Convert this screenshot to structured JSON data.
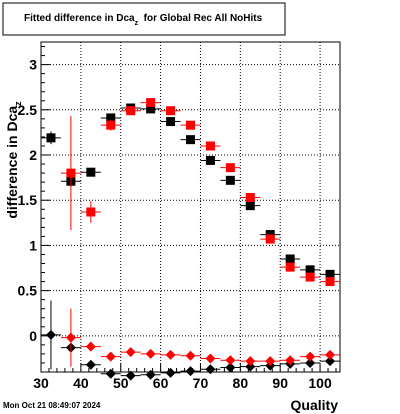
{
  "chart_data": {
    "type": "scatter",
    "title": "Fitted difference in Dca",
    "title_sub": "z",
    "title_rest": "  for Global Rec All NoHits",
    "xlabel": "Quality",
    "ylabel": "difference in Dca",
    "ylabel_sub": "z",
    "xlim": [
      30,
      105
    ],
    "ylim": [
      -0.4,
      3.25
    ],
    "x_ticks": [
      30,
      40,
      50,
      60,
      70,
      80,
      90,
      100
    ],
    "y_ticks": [
      0,
      0.5,
      1,
      1.5,
      2,
      2.5,
      3
    ],
    "x_tick_labels": [
      "30",
      "40",
      "50",
      "60",
      "70",
      "80",
      "90",
      "100"
    ],
    "y_tick_labels": [
      "0",
      "0.5",
      "1",
      "1.5",
      "2",
      "2.5",
      "3"
    ],
    "grid": true,
    "legend": "none",
    "series": [
      {
        "marker": "square",
        "color": "#000000",
        "points": [
          [
            32.5,
            2.19,
            0.07
          ],
          [
            37.5,
            1.71,
            0.06
          ],
          [
            42.5,
            1.81,
            0.04
          ],
          [
            47.5,
            2.41,
            0.03
          ],
          [
            52.5,
            2.52,
            0.02
          ],
          [
            57.5,
            2.51,
            0.02
          ],
          [
            62.5,
            2.37,
            0.02
          ],
          [
            67.5,
            2.17,
            0.02
          ],
          [
            72.5,
            1.94,
            0.02
          ],
          [
            77.5,
            1.72,
            0.02
          ],
          [
            82.5,
            1.44,
            0.02
          ],
          [
            87.5,
            1.12,
            0.02
          ],
          [
            92.5,
            0.85,
            0.02
          ],
          [
            97.5,
            0.73,
            0.02
          ],
          [
            102.5,
            0.68,
            0.02
          ]
        ]
      },
      {
        "marker": "square",
        "color": "#ff0000",
        "points": [
          [
            37.5,
            1.8,
            0.63
          ],
          [
            42.5,
            1.37,
            0.12
          ],
          [
            47.5,
            2.33,
            0.06
          ],
          [
            52.5,
            2.49,
            0.03
          ],
          [
            57.5,
            2.58,
            0.03
          ],
          [
            62.5,
            2.49,
            0.02
          ],
          [
            67.5,
            2.33,
            0.02
          ],
          [
            72.5,
            2.1,
            0.02
          ],
          [
            77.5,
            1.86,
            0.02
          ],
          [
            82.5,
            1.53,
            0.02
          ],
          [
            87.5,
            1.07,
            0.02
          ],
          [
            92.5,
            0.76,
            0.02
          ],
          [
            97.5,
            0.65,
            0.02
          ],
          [
            102.5,
            0.6,
            0.02
          ]
        ]
      },
      {
        "marker": "circle",
        "color": "#000000",
        "points": [
          [
            32.5,
            0.01,
            0.38
          ],
          [
            37.5,
            -0.13,
            0.05
          ],
          [
            42.5,
            -0.32,
            0.03
          ],
          [
            47.5,
            -0.42,
            0.02
          ],
          [
            52.5,
            -0.44,
            0.02
          ],
          [
            57.5,
            -0.43,
            0.02
          ],
          [
            62.5,
            -0.41,
            0.02
          ],
          [
            67.5,
            -0.39,
            0.02
          ],
          [
            72.5,
            -0.37,
            0.02
          ],
          [
            77.5,
            -0.35,
            0.02
          ],
          [
            82.5,
            -0.34,
            0.02
          ],
          [
            87.5,
            -0.33,
            0.02
          ],
          [
            92.5,
            -0.31,
            0.02
          ],
          [
            97.5,
            -0.3,
            0.02
          ],
          [
            102.5,
            -0.28,
            0.02
          ]
        ]
      },
      {
        "marker": "circle",
        "color": "#ff0000",
        "points": [
          [
            37.5,
            -0.02,
            0.32
          ],
          [
            42.5,
            -0.12,
            0.05
          ],
          [
            47.5,
            -0.23,
            0.03
          ],
          [
            52.5,
            -0.18,
            0.02
          ],
          [
            57.5,
            -0.2,
            0.02
          ],
          [
            62.5,
            -0.21,
            0.02
          ],
          [
            67.5,
            -0.22,
            0.02
          ],
          [
            72.5,
            -0.25,
            0.02
          ],
          [
            77.5,
            -0.27,
            0.02
          ],
          [
            82.5,
            -0.28,
            0.02
          ],
          [
            87.5,
            -0.28,
            0.02
          ],
          [
            92.5,
            -0.27,
            0.02
          ],
          [
            97.5,
            -0.23,
            0.02
          ],
          [
            102.5,
            -0.21,
            0.02
          ]
        ]
      }
    ]
  },
  "footer": {
    "timestamp": "Mon Oct 21 08:49:07 2024"
  }
}
